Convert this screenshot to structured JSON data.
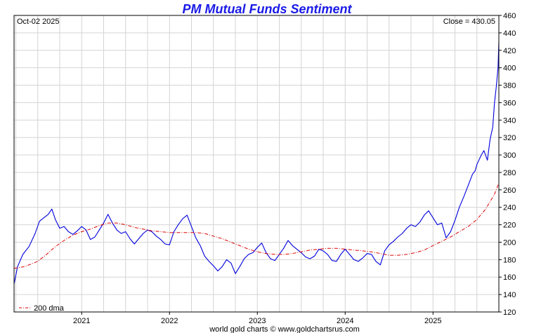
{
  "chart_data": {
    "type": "line",
    "title": "PM Mutual Funds Sentiment",
    "date_label": "Oct-02  2025",
    "close_label": "Close = 430.05",
    "footer": "world gold charts © www.goldchartsrus.com",
    "x_tick_labels": [
      "2021",
      "2022",
      "2023",
      "2024",
      "2025"
    ],
    "x_tick_years": [
      2021,
      2022,
      2023,
      2024,
      2025
    ],
    "xlim": [
      2020.23,
      2025.75
    ],
    "ylim": [
      120,
      460
    ],
    "y_ticks": [
      120,
      140,
      160,
      180,
      200,
      220,
      240,
      260,
      280,
      300,
      320,
      340,
      360,
      380,
      400,
      420,
      440,
      460
    ],
    "grid": true,
    "legend": {
      "position": "bottom-left"
    },
    "colors": {
      "title": "#1a1ae6",
      "series": "#0000dd",
      "dma": "#dd0000",
      "grid": "#d4d4d4"
    },
    "series": [
      {
        "name": "",
        "x": [
          2020.23,
          2020.27,
          2020.33,
          2020.4,
          2020.47,
          2020.52,
          2020.57,
          2020.62,
          2020.66,
          2020.7,
          2020.75,
          2020.8,
          2020.85,
          2020.9,
          2020.95,
          2021.0,
          2021.05,
          2021.1,
          2021.15,
          2021.2,
          2021.25,
          2021.3,
          2021.35,
          2021.4,
          2021.45,
          2021.5,
          2021.55,
          2021.6,
          2021.65,
          2021.7,
          2021.75,
          2021.8,
          2021.85,
          2021.9,
          2021.95,
          2022.0,
          2022.05,
          2022.1,
          2022.15,
          2022.2,
          2022.25,
          2022.3,
          2022.35,
          2022.4,
          2022.45,
          2022.5,
          2022.55,
          2022.6,
          2022.65,
          2022.7,
          2022.75,
          2022.8,
          2022.85,
          2022.9,
          2022.95,
          2023.0,
          2023.05,
          2023.1,
          2023.15,
          2023.2,
          2023.25,
          2023.3,
          2023.35,
          2023.4,
          2023.45,
          2023.5,
          2023.55,
          2023.6,
          2023.65,
          2023.7,
          2023.75,
          2023.8,
          2023.85,
          2023.9,
          2023.95,
          2024.0,
          2024.05,
          2024.1,
          2024.15,
          2024.2,
          2024.25,
          2024.3,
          2024.35,
          2024.4,
          2024.45,
          2024.5,
          2024.55,
          2024.6,
          2024.65,
          2024.7,
          2024.75,
          2024.8,
          2024.85,
          2024.9,
          2024.95,
          2025.0,
          2025.05,
          2025.1,
          2025.15,
          2025.2,
          2025.25,
          2025.3,
          2025.35,
          2025.4,
          2025.45,
          2025.48,
          2025.5,
          2025.55,
          2025.58,
          2025.62,
          2025.65,
          2025.68,
          2025.7,
          2025.72,
          2025.74,
          2025.75
        ],
        "values": [
          152,
          172,
          186,
          195,
          210,
          224,
          228,
          232,
          238,
          226,
          216,
          218,
          212,
          209,
          213,
          218,
          214,
          203,
          206,
          214,
          222,
          232,
          222,
          214,
          210,
          212,
          204,
          198,
          204,
          210,
          214,
          212,
          207,
          203,
          198,
          197,
          212,
          220,
          227,
          231,
          218,
          205,
          196,
          184,
          178,
          173,
          167,
          172,
          180,
          176,
          164,
          172,
          181,
          186,
          188,
          194,
          199,
          188,
          181,
          179,
          186,
          193,
          202,
          196,
          192,
          188,
          183,
          181,
          184,
          192,
          190,
          186,
          179,
          178,
          186,
          192,
          186,
          180,
          178,
          182,
          187,
          186,
          178,
          174,
          190,
          197,
          201,
          206,
          210,
          216,
          220,
          218,
          223,
          231,
          236,
          228,
          220,
          222,
          205,
          212,
          225,
          240,
          252,
          265,
          278,
          282,
          289,
          300,
          305,
          294,
          318,
          332,
          360,
          378,
          400,
          430
        ]
      },
      {
        "name": "200 dma",
        "x": [
          2020.23,
          2020.35,
          2020.5,
          2020.6,
          2020.7,
          2020.8,
          2020.9,
          2021.0,
          2021.1,
          2021.2,
          2021.3,
          2021.4,
          2021.5,
          2021.6,
          2021.7,
          2021.8,
          2021.9,
          2022.0,
          2022.1,
          2022.2,
          2022.3,
          2022.4,
          2022.5,
          2022.6,
          2022.7,
          2022.8,
          2022.9,
          2023.0,
          2023.1,
          2023.2,
          2023.3,
          2023.4,
          2023.5,
          2023.6,
          2023.7,
          2023.8,
          2023.9,
          2024.0,
          2024.1,
          2024.2,
          2024.3,
          2024.4,
          2024.5,
          2024.6,
          2024.7,
          2024.8,
          2024.9,
          2025.0,
          2025.1,
          2025.2,
          2025.3,
          2025.4,
          2025.5,
          2025.6,
          2025.7,
          2025.75
        ],
        "values": [
          170,
          172,
          178,
          186,
          195,
          202,
          208,
          212,
          215,
          219,
          222,
          222,
          220,
          217,
          215,
          213,
          212,
          211,
          211,
          211,
          211,
          210,
          207,
          204,
          200,
          196,
          192,
          189,
          187,
          186,
          186,
          187,
          189,
          191,
          192,
          193,
          193,
          192,
          191,
          190,
          189,
          187,
          185,
          185,
          186,
          188,
          191,
          196,
          201,
          206,
          212,
          218,
          226,
          238,
          255,
          268
        ]
      }
    ]
  }
}
